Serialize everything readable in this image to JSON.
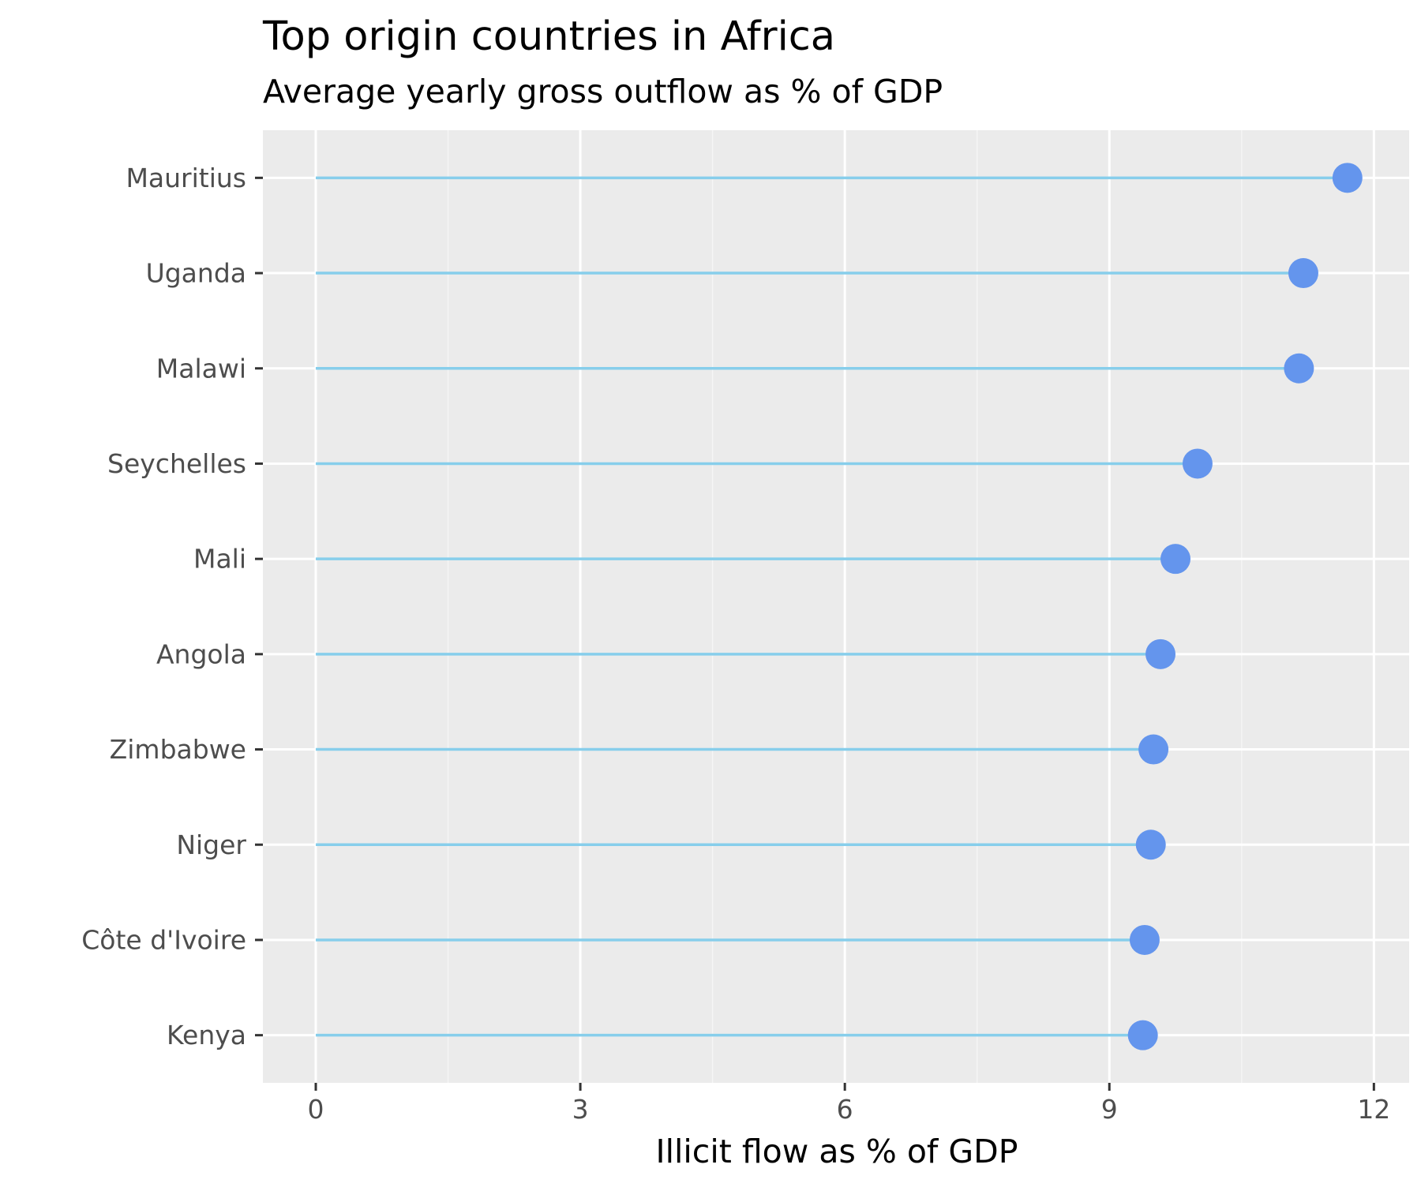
{
  "chart_data": {
    "type": "lollipop",
    "title": "Top origin countries in Africa",
    "subtitle": "Average yearly gross outflow as % of GDP",
    "xlabel": "Illicit flow as % of GDP",
    "ylabel": "",
    "xlim": [
      -0.6,
      12.4
    ],
    "x_ticks": [
      0,
      3,
      6,
      9,
      12
    ],
    "x_tick_labels": [
      "0",
      "3",
      "6",
      "9",
      "12"
    ],
    "categories": [
      "Mauritius",
      "Uganda",
      "Malawi",
      "Seychelles",
      "Mali",
      "Angola",
      "Zimbabwe",
      "Niger",
      "Côte d'Ivoire",
      "Kenya"
    ],
    "values": [
      11.7,
      11.2,
      11.15,
      10.0,
      9.75,
      9.58,
      9.5,
      9.47,
      9.4,
      9.38
    ],
    "grid": true,
    "legend": "none",
    "colors": {
      "panel_background": "#ebebeb",
      "grid_major": "#ffffff",
      "grid_minor": "#f5f5f5",
      "stem": "#87ceeb",
      "point": "#6495ed",
      "tick_text": "#4d4d4d",
      "tick_mark": "#333333",
      "title_text": "#000000"
    }
  }
}
